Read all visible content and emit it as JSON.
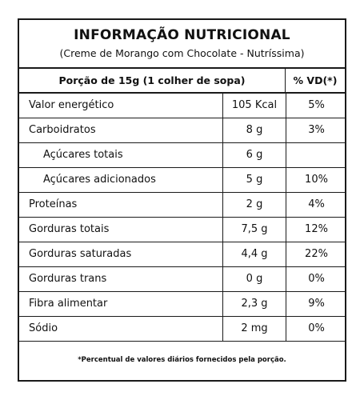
{
  "header": {
    "title": "INFORMAÇÃO NUTRICIONAL",
    "subtitle": "(Creme de Morango com Chocolate - Nutríssima)"
  },
  "serving": {
    "label": "Porção de 15g (1 colher de sopa)",
    "vd_header": "% VD(*)"
  },
  "rows": [
    {
      "name": "Valor energético",
      "amount": "105 Kcal",
      "vd": "5%",
      "indent": false
    },
    {
      "name": "Carboidratos",
      "amount": "8 g",
      "vd": "3%",
      "indent": false
    },
    {
      "name": "Açúcares totais",
      "amount": "6 g",
      "vd": "",
      "indent": true
    },
    {
      "name": "Açúcares adicionados",
      "amount": "5 g",
      "vd": "10%",
      "indent": true
    },
    {
      "name": "Proteínas",
      "amount": "2 g",
      "vd": "4%",
      "indent": false
    },
    {
      "name": "Gorduras totais",
      "amount": "7,5 g",
      "vd": "12%",
      "indent": false
    },
    {
      "name": "Gorduras saturadas",
      "amount": "4,4 g",
      "vd": "22%",
      "indent": false
    },
    {
      "name": "Gorduras trans",
      "amount": "0 g",
      "vd": "0%",
      "indent": false
    },
    {
      "name": "Fibra alimentar",
      "amount": "2,3 g",
      "vd": "9%",
      "indent": false
    },
    {
      "name": "Sódio",
      "amount": "2 mg",
      "vd": "0%",
      "indent": false
    }
  ],
  "footnote": "*Percentual de valores diários fornecidos pela porção."
}
